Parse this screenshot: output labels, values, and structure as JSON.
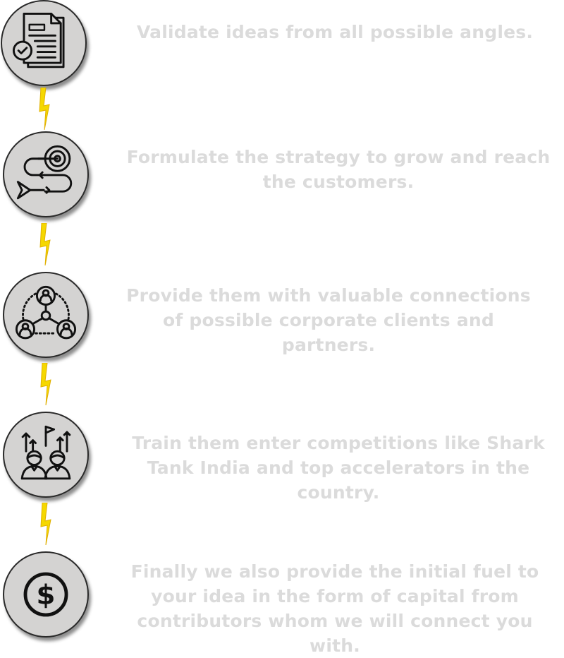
{
  "steps": [
    {
      "icon": "document-check-icon",
      "text": "Validate ideas from all possible angles."
    },
    {
      "icon": "strategy-target-icon",
      "text": "Formulate the strategy to grow and reach the customers."
    },
    {
      "icon": "network-connections-icon",
      "text": "Provide them with valuable connections of possible corporate clients and partners."
    },
    {
      "icon": "team-flag-growth-icon",
      "text": "Train them enter competitions like Shark Tank India and top accelerators in the country."
    },
    {
      "icon": "dollar-coin-icon",
      "text": "Finally we also provide the initial fuel to your idea in the form of capital from contributors whom we will connect you with."
    }
  ],
  "colors": {
    "circle_fill": "#d4d3d2",
    "text": "#dbdbdb",
    "bolt": "#f5d800"
  }
}
